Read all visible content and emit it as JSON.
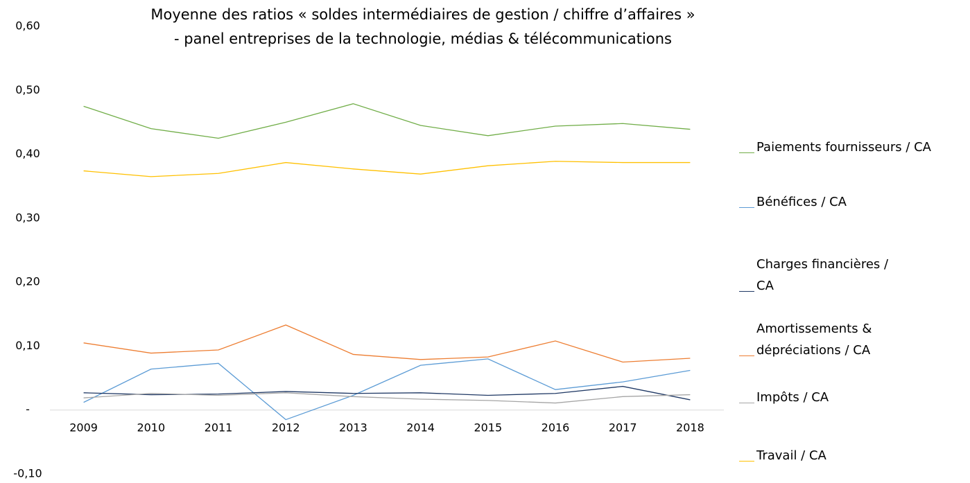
{
  "chart_data": {
    "type": "line",
    "title": [
      "Moyenne des ratios « soldes intermédiaires de gestion / chiffre d’affaires »",
      "- panel entreprises de la technologie, médias & télécommunications"
    ],
    "categories": [
      "2009",
      "2010",
      "2011",
      "2012",
      "2013",
      "2014",
      "2015",
      "2016",
      "2017",
      "2018"
    ],
    "series": [
      {
        "name": "Paiements fournisseurs / CA",
        "color": "#70ad47",
        "values": [
          0.475,
          0.44,
          0.425,
          0.45,
          0.479,
          0.445,
          0.429,
          0.444,
          0.448,
          0.439
        ]
      },
      {
        "name": "Bénéfices / CA",
        "color": "#5b9bd5",
        "values": [
          0.012,
          0.064,
          0.073,
          -0.015,
          0.023,
          0.07,
          0.08,
          0.032,
          0.044,
          0.062
        ]
      },
      {
        "name": "Charges financières / CA",
        "color": "#1f3864",
        "values": [
          0.027,
          0.024,
          0.025,
          0.029,
          0.026,
          0.027,
          0.023,
          0.026,
          0.037,
          0.016
        ]
      },
      {
        "name": "Amortissements & dépréciations / CA",
        "color": "#ed7d31",
        "values": [
          0.105,
          0.089,
          0.094,
          0.133,
          0.087,
          0.079,
          0.083,
          0.108,
          0.075,
          0.081
        ]
      },
      {
        "name": "Impôts / CA",
        "color": "#a5a5a5",
        "values": [
          0.019,
          0.026,
          0.023,
          0.027,
          0.021,
          0.017,
          0.015,
          0.011,
          0.021,
          0.024
        ]
      },
      {
        "name": "Travail / CA",
        "color": "#ffc000",
        "values": [
          0.374,
          0.365,
          0.37,
          0.387,
          0.377,
          0.369,
          0.382,
          0.389,
          0.387,
          0.387
        ]
      }
    ],
    "ylim": [
      -0.1,
      0.6
    ],
    "yticks": [
      {
        "value": 0.6,
        "label": "0,60"
      },
      {
        "value": 0.5,
        "label": "0,50"
      },
      {
        "value": 0.4,
        "label": "0,40"
      },
      {
        "value": 0.3,
        "label": "0,30"
      },
      {
        "value": 0.2,
        "label": "0,20"
      },
      {
        "value": 0.1,
        "label": "0,10"
      },
      {
        "value": 0,
        "label": "-"
      },
      {
        "value": -0.1,
        "label": "-0,10"
      }
    ],
    "grid": false,
    "legend": "right"
  }
}
